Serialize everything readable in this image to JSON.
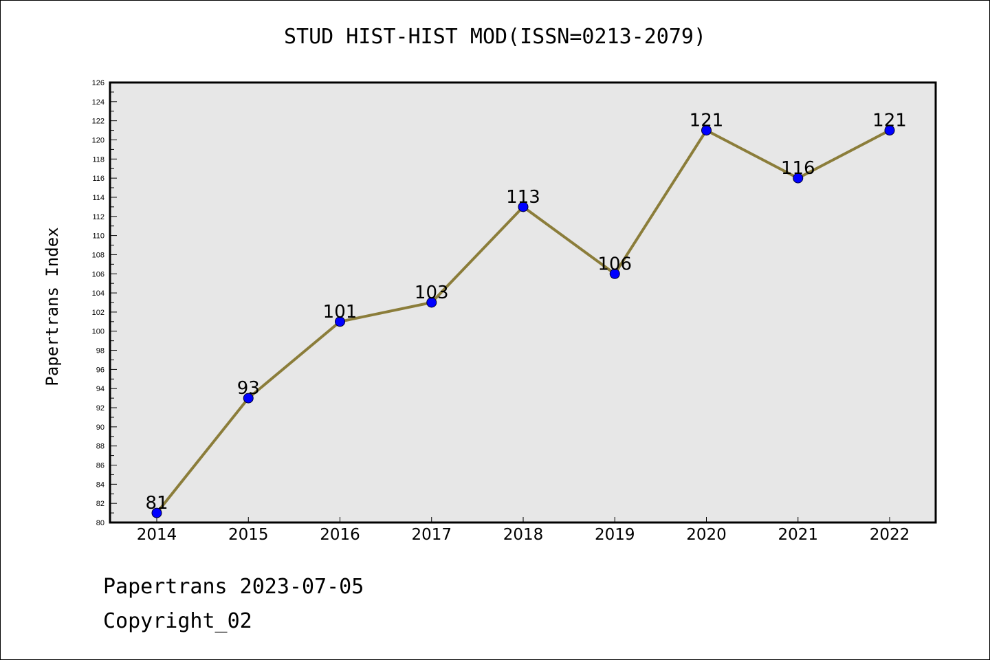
{
  "title": "STUD HIST-HIST MOD(ISSN=0213-2079)",
  "footer": {
    "line1": "Papertrans 2023-07-05",
    "line2": "Copyright_02"
  },
  "colors": {
    "plot_background": "#e7e7e7",
    "line": "#8b7d3a",
    "marker": "#0000ff",
    "axis": "#000000"
  },
  "chart_data": {
    "type": "line",
    "title": "STUD HIST-HIST MOD(ISSN=0213-2079)",
    "xlabel": "",
    "ylabel": "Papertrans Index",
    "x": [
      "2014",
      "2015",
      "2016",
      "2017",
      "2018",
      "2019",
      "2020",
      "2021",
      "2022"
    ],
    "series": [
      {
        "values": [
          81,
          93,
          101,
          103,
          113,
          106,
          121,
          116,
          121
        ]
      }
    ],
    "data_labels": [
      "81",
      "93",
      "101",
      "103",
      "113",
      "106",
      "121",
      "116",
      "121"
    ],
    "ylim": [
      80,
      126
    ],
    "y_ticks": [
      "80",
      "82",
      "84",
      "86",
      "88",
      "90",
      "92",
      "94",
      "96",
      "98",
      "100",
      "102",
      "104",
      "106",
      "108",
      "110",
      "112",
      "114",
      "116",
      "118",
      "120",
      "122",
      "124",
      "126"
    ],
    "grid": false,
    "legend": "none"
  }
}
